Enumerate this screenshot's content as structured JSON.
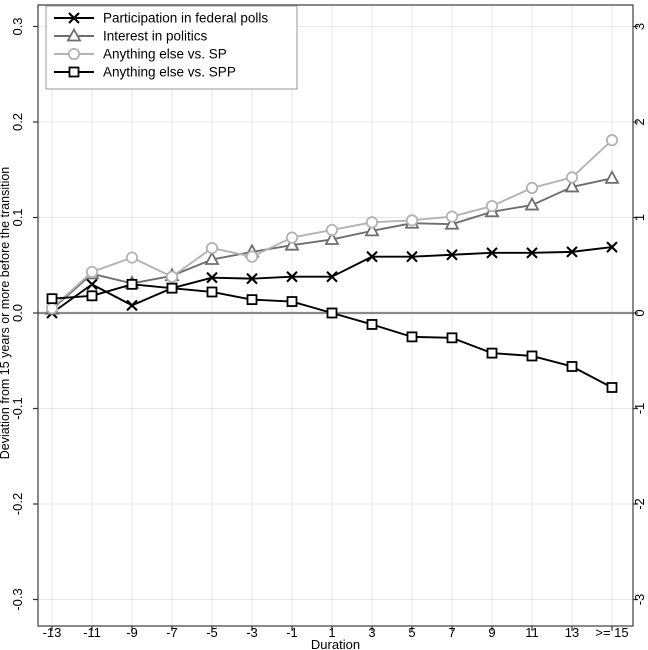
{
  "chart_data": {
    "type": "line",
    "title": "",
    "xlabel": "Duration",
    "ylabel": "Deviation from 15 years or more before the transition",
    "x_tick_labels": [
      "-13",
      "-11",
      "-9",
      "-7",
      "-5",
      "-3",
      "-1",
      "1",
      "3",
      "5",
      "7",
      "9",
      "11",
      "13",
      ">= 15"
    ],
    "x_values": [
      -13,
      -11,
      -9,
      -7,
      -5,
      -3,
      -1,
      1,
      3,
      5,
      7,
      9,
      11,
      13,
      15
    ],
    "ylim_left": [
      -0.3,
      0.3
    ],
    "ylim_right": [
      -3,
      3
    ],
    "y_ticks_left": [
      {
        "label": "0.3",
        "v": 0.3
      },
      {
        "label": "0.2",
        "v": 0.2
      },
      {
        "label": "0.1",
        "v": 0.1
      },
      {
        "label": "0.0",
        "v": 0.0
      },
      {
        "label": "-0.1",
        "v": -0.1
      },
      {
        "label": "-0.2",
        "v": -0.2
      },
      {
        "label": "-0.3",
        "v": -0.3
      }
    ],
    "y_ticks_right": [
      {
        "label": "3",
        "v": 0.3
      },
      {
        "label": "2",
        "v": 0.2
      },
      {
        "label": "1",
        "v": 0.1
      },
      {
        "label": "0",
        "v": 0.0
      },
      {
        "label": "-1",
        "v": -0.1
      },
      {
        "label": "-2",
        "v": -0.2
      },
      {
        "label": "-3",
        "v": -0.3
      }
    ],
    "grid": true,
    "legend_position": "top-left",
    "series": [
      {
        "name": "Participation in federal polls",
        "marker": "x",
        "color": "#000000",
        "values": [
          0.0,
          0.03,
          0.008,
          0.026,
          0.037,
          0.036,
          0.038,
          0.038,
          0.059,
          0.059,
          0.061,
          0.063,
          0.063,
          0.064,
          0.069
        ]
      },
      {
        "name": "Interest in politics",
        "marker": "triangle",
        "color": "#6e6e6e",
        "values": [
          0.004,
          0.041,
          0.031,
          0.039,
          0.056,
          0.064,
          0.071,
          0.077,
          0.086,
          0.094,
          0.093,
          0.106,
          0.113,
          0.132,
          0.141
        ]
      },
      {
        "name": "Anything else vs. SP",
        "marker": "circle",
        "color": "#b3b3b3",
        "values": [
          0.005,
          0.043,
          0.058,
          0.038,
          0.068,
          0.059,
          0.079,
          0.087,
          0.095,
          0.097,
          0.101,
          0.112,
          0.131,
          0.142,
          0.181
        ]
      },
      {
        "name": "Anything else vs. SPP",
        "marker": "square",
        "color": "#000000",
        "values": [
          0.015,
          0.018,
          0.03,
          0.026,
          0.022,
          0.014,
          0.012,
          0.0,
          -0.012,
          -0.025,
          -0.026,
          -0.042,
          -0.045,
          -0.056,
          -0.078
        ]
      }
    ],
    "colors": {
      "background": "#ffffff",
      "grid": "#e8e8e8",
      "zero_line": "#8a8a8a",
      "plot_border": "#4a4a4a",
      "tick": "#333333",
      "legend_border": "#999999"
    }
  }
}
